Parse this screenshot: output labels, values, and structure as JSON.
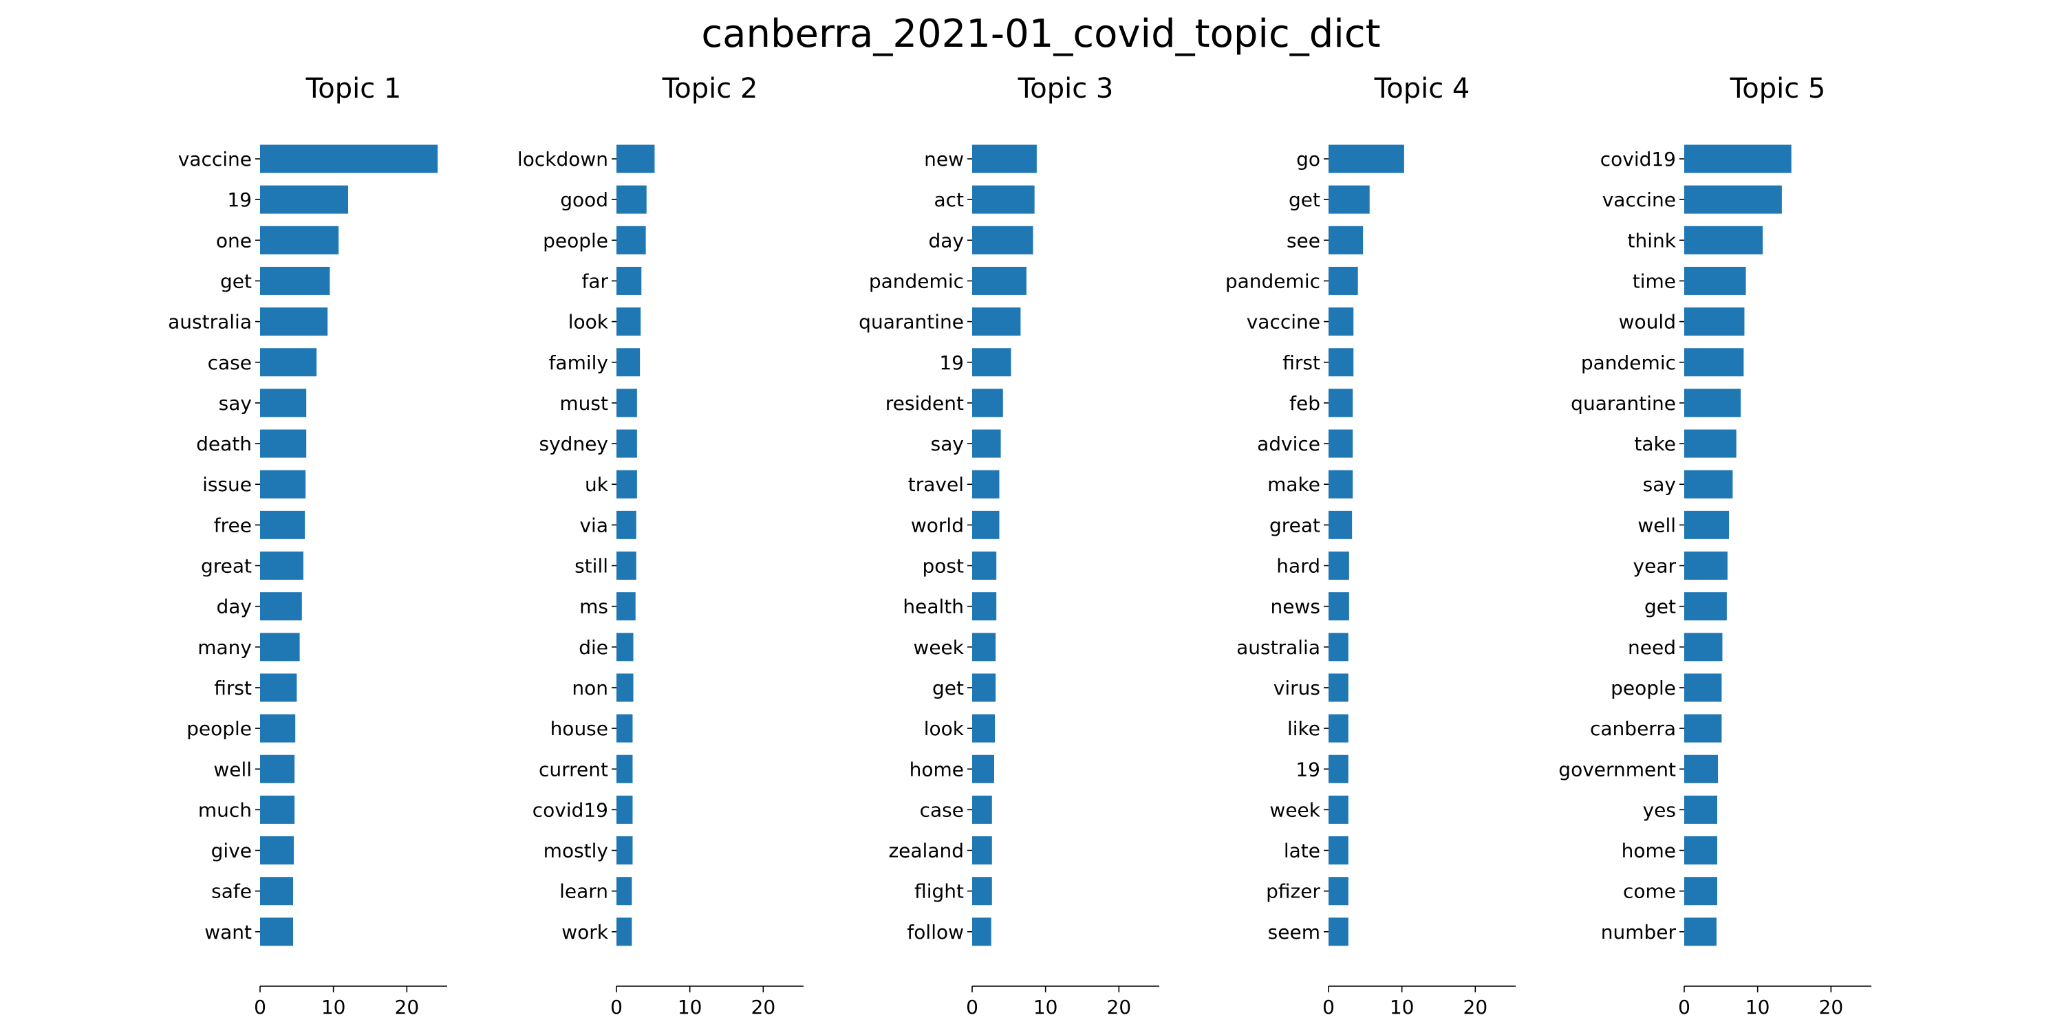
{
  "chart_data": {
    "type": "bar",
    "orientation": "horizontal",
    "title": "canberra_2021-01_covid_topic_dict",
    "bar_color": "#1f77b4",
    "xlim": [
      0,
      25.5
    ],
    "xticks": [
      0,
      10,
      20
    ],
    "grid": false,
    "panels": [
      {
        "title": "Topic 1",
        "categories": [
          "vaccine",
          "19",
          "one",
          "get",
          "australia",
          "case",
          "say",
          "death",
          "issue",
          "free",
          "great",
          "day",
          "many",
          "first",
          "people",
          "well",
          "much",
          "give",
          "safe",
          "want"
        ],
        "values": [
          24.2,
          12.0,
          10.7,
          9.5,
          9.2,
          7.7,
          6.3,
          6.3,
          6.2,
          6.1,
          5.9,
          5.7,
          5.4,
          5.0,
          4.8,
          4.7,
          4.7,
          4.6,
          4.5,
          4.5
        ]
      },
      {
        "title": "Topic 2",
        "categories": [
          "lockdown",
          "good",
          "people",
          "far",
          "look",
          "family",
          "must",
          "sydney",
          "uk",
          "via",
          "still",
          "ms",
          "die",
          "non",
          "house",
          "current",
          "covid19",
          "mostly",
          "learn",
          "work"
        ],
        "values": [
          5.2,
          4.1,
          4.0,
          3.4,
          3.3,
          3.2,
          2.8,
          2.8,
          2.8,
          2.7,
          2.7,
          2.6,
          2.3,
          2.3,
          2.2,
          2.2,
          2.2,
          2.2,
          2.1,
          2.1
        ]
      },
      {
        "title": "Topic 3",
        "categories": [
          "new",
          "act",
          "day",
          "pandemic",
          "quarantine",
          "19",
          "resident",
          "say",
          "travel",
          "world",
          "post",
          "health",
          "week",
          "get",
          "look",
          "home",
          "case",
          "zealand",
          "flight",
          "follow"
        ],
        "values": [
          8.8,
          8.5,
          8.3,
          7.4,
          6.6,
          5.3,
          4.2,
          3.9,
          3.7,
          3.7,
          3.3,
          3.3,
          3.2,
          3.2,
          3.1,
          3.0,
          2.7,
          2.7,
          2.7,
          2.6
        ]
      },
      {
        "title": "Topic 4",
        "categories": [
          "go",
          "get",
          "see",
          "pandemic",
          "vaccine",
          "first",
          "feb",
          "advice",
          "make",
          "great",
          "hard",
          "news",
          "australia",
          "virus",
          "like",
          "19",
          "week",
          "late",
          "pfizer",
          "seem"
        ],
        "values": [
          10.3,
          5.6,
          4.7,
          4.0,
          3.4,
          3.4,
          3.3,
          3.3,
          3.3,
          3.2,
          2.8,
          2.8,
          2.7,
          2.7,
          2.7,
          2.7,
          2.7,
          2.7,
          2.7,
          2.7
        ]
      },
      {
        "title": "Topic 5",
        "categories": [
          "covid19",
          "vaccine",
          "think",
          "time",
          "would",
          "pandemic",
          "quarantine",
          "take",
          "say",
          "well",
          "year",
          "get",
          "need",
          "people",
          "canberra",
          "government",
          "yes",
          "home",
          "come",
          "number"
        ],
        "values": [
          14.6,
          13.3,
          10.7,
          8.4,
          8.2,
          8.1,
          7.7,
          7.1,
          6.6,
          6.1,
          5.9,
          5.8,
          5.2,
          5.1,
          5.1,
          4.6,
          4.5,
          4.5,
          4.5,
          4.4
        ]
      }
    ]
  }
}
